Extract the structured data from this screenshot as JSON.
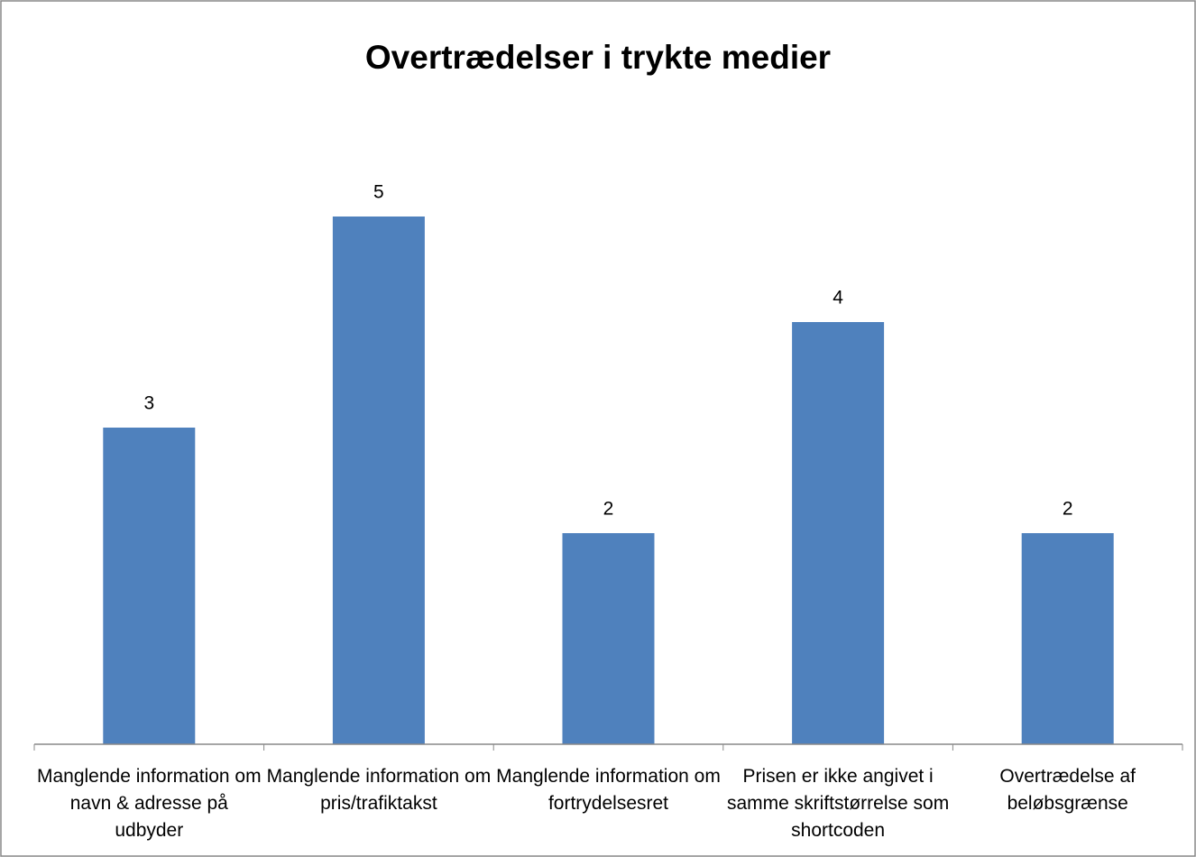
{
  "chart_data": {
    "type": "bar",
    "title": "Overtrædelser i trykte medier",
    "categories": [
      "Manglende information om navn & adresse på udbyder",
      "Manglende information om pris/trafiktakst",
      "Manglende information om fortrydelsesret",
      "Prisen er ikke angivet i samme skriftstørrelse som shortcoden",
      "Overtrædelse af beløbsgrænse"
    ],
    "values": [
      3,
      5,
      2,
      4,
      2
    ],
    "color": "#4f81bd"
  }
}
